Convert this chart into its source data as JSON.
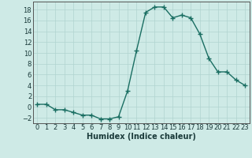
{
  "x": [
    0,
    1,
    2,
    3,
    4,
    5,
    6,
    7,
    8,
    9,
    10,
    11,
    12,
    13,
    14,
    15,
    16,
    17,
    18,
    19,
    20,
    21,
    22,
    23
  ],
  "y": [
    0.5,
    0.5,
    -0.5,
    -0.5,
    -1.0,
    -1.5,
    -1.5,
    -2.2,
    -2.2,
    -1.8,
    3.0,
    10.5,
    17.5,
    18.5,
    18.5,
    16.5,
    17.0,
    16.5,
    13.5,
    9.0,
    6.5,
    6.5,
    5.0,
    4.0
  ],
  "line_color": "#1a6e62",
  "marker": "+",
  "markersize": 4,
  "linewidth": 1.0,
  "bg_color": "#ceeae6",
  "grid_color": "#b0d4d0",
  "xlabel": "Humidex (Indice chaleur)",
  "xlim": [
    -0.5,
    23.5
  ],
  "ylim": [
    -3,
    19.5
  ],
  "yticks": [
    -2,
    0,
    2,
    4,
    6,
    8,
    10,
    12,
    14,
    16,
    18
  ],
  "xticks": [
    0,
    1,
    2,
    3,
    4,
    5,
    6,
    7,
    8,
    9,
    10,
    11,
    12,
    13,
    14,
    15,
    16,
    17,
    18,
    19,
    20,
    21,
    22,
    23
  ],
  "xlabel_fontsize": 7.0,
  "tick_fontsize": 6.0
}
